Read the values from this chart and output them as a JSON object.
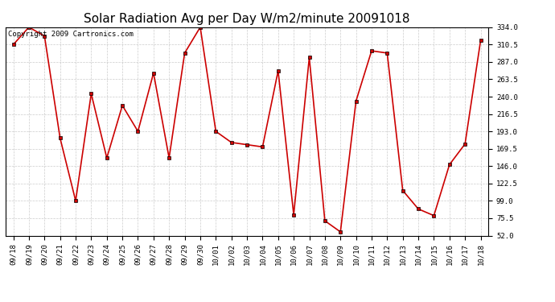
{
  "title": "Solar Radiation Avg per Day W/m2/minute 20091018",
  "copyright": "Copyright 2009 Cartronics.com",
  "dates": [
    "09/18",
    "09/19",
    "09/20",
    "09/21",
    "09/22",
    "09/23",
    "09/24",
    "09/25",
    "09/26",
    "09/27",
    "09/28",
    "09/29",
    "09/30",
    "10/01",
    "10/02",
    "10/03",
    "10/04",
    "10/05",
    "10/06",
    "10/07",
    "10/08",
    "10/09",
    "10/10",
    "10/11",
    "10/12",
    "10/13",
    "10/14",
    "10/15",
    "10/16",
    "10/17",
    "10/18"
  ],
  "values": [
    310.5,
    334.0,
    322.0,
    184.0,
    99.0,
    244.0,
    157.0,
    228.0,
    193.0,
    272.0,
    157.0,
    299.0,
    334.0,
    193.0,
    178.0,
    175.0,
    172.0,
    275.0,
    80.0,
    293.0,
    72.0,
    57.0,
    234.0,
    302.0,
    299.0,
    113.0,
    88.0,
    79.0,
    148.0,
    176.0,
    316.0
  ],
  "line_color": "#cc0000",
  "marker_color": "#000000",
  "bg_color": "#ffffff",
  "grid_color": "#c0c0c0",
  "title_fontsize": 11,
  "copyright_fontsize": 6.5,
  "tick_fontsize": 6.5,
  "ymin": 52.0,
  "ymax": 334.0,
  "yticks": [
    52.0,
    75.5,
    99.0,
    122.5,
    146.0,
    169.5,
    193.0,
    216.5,
    240.0,
    263.5,
    287.0,
    310.5,
    334.0
  ]
}
